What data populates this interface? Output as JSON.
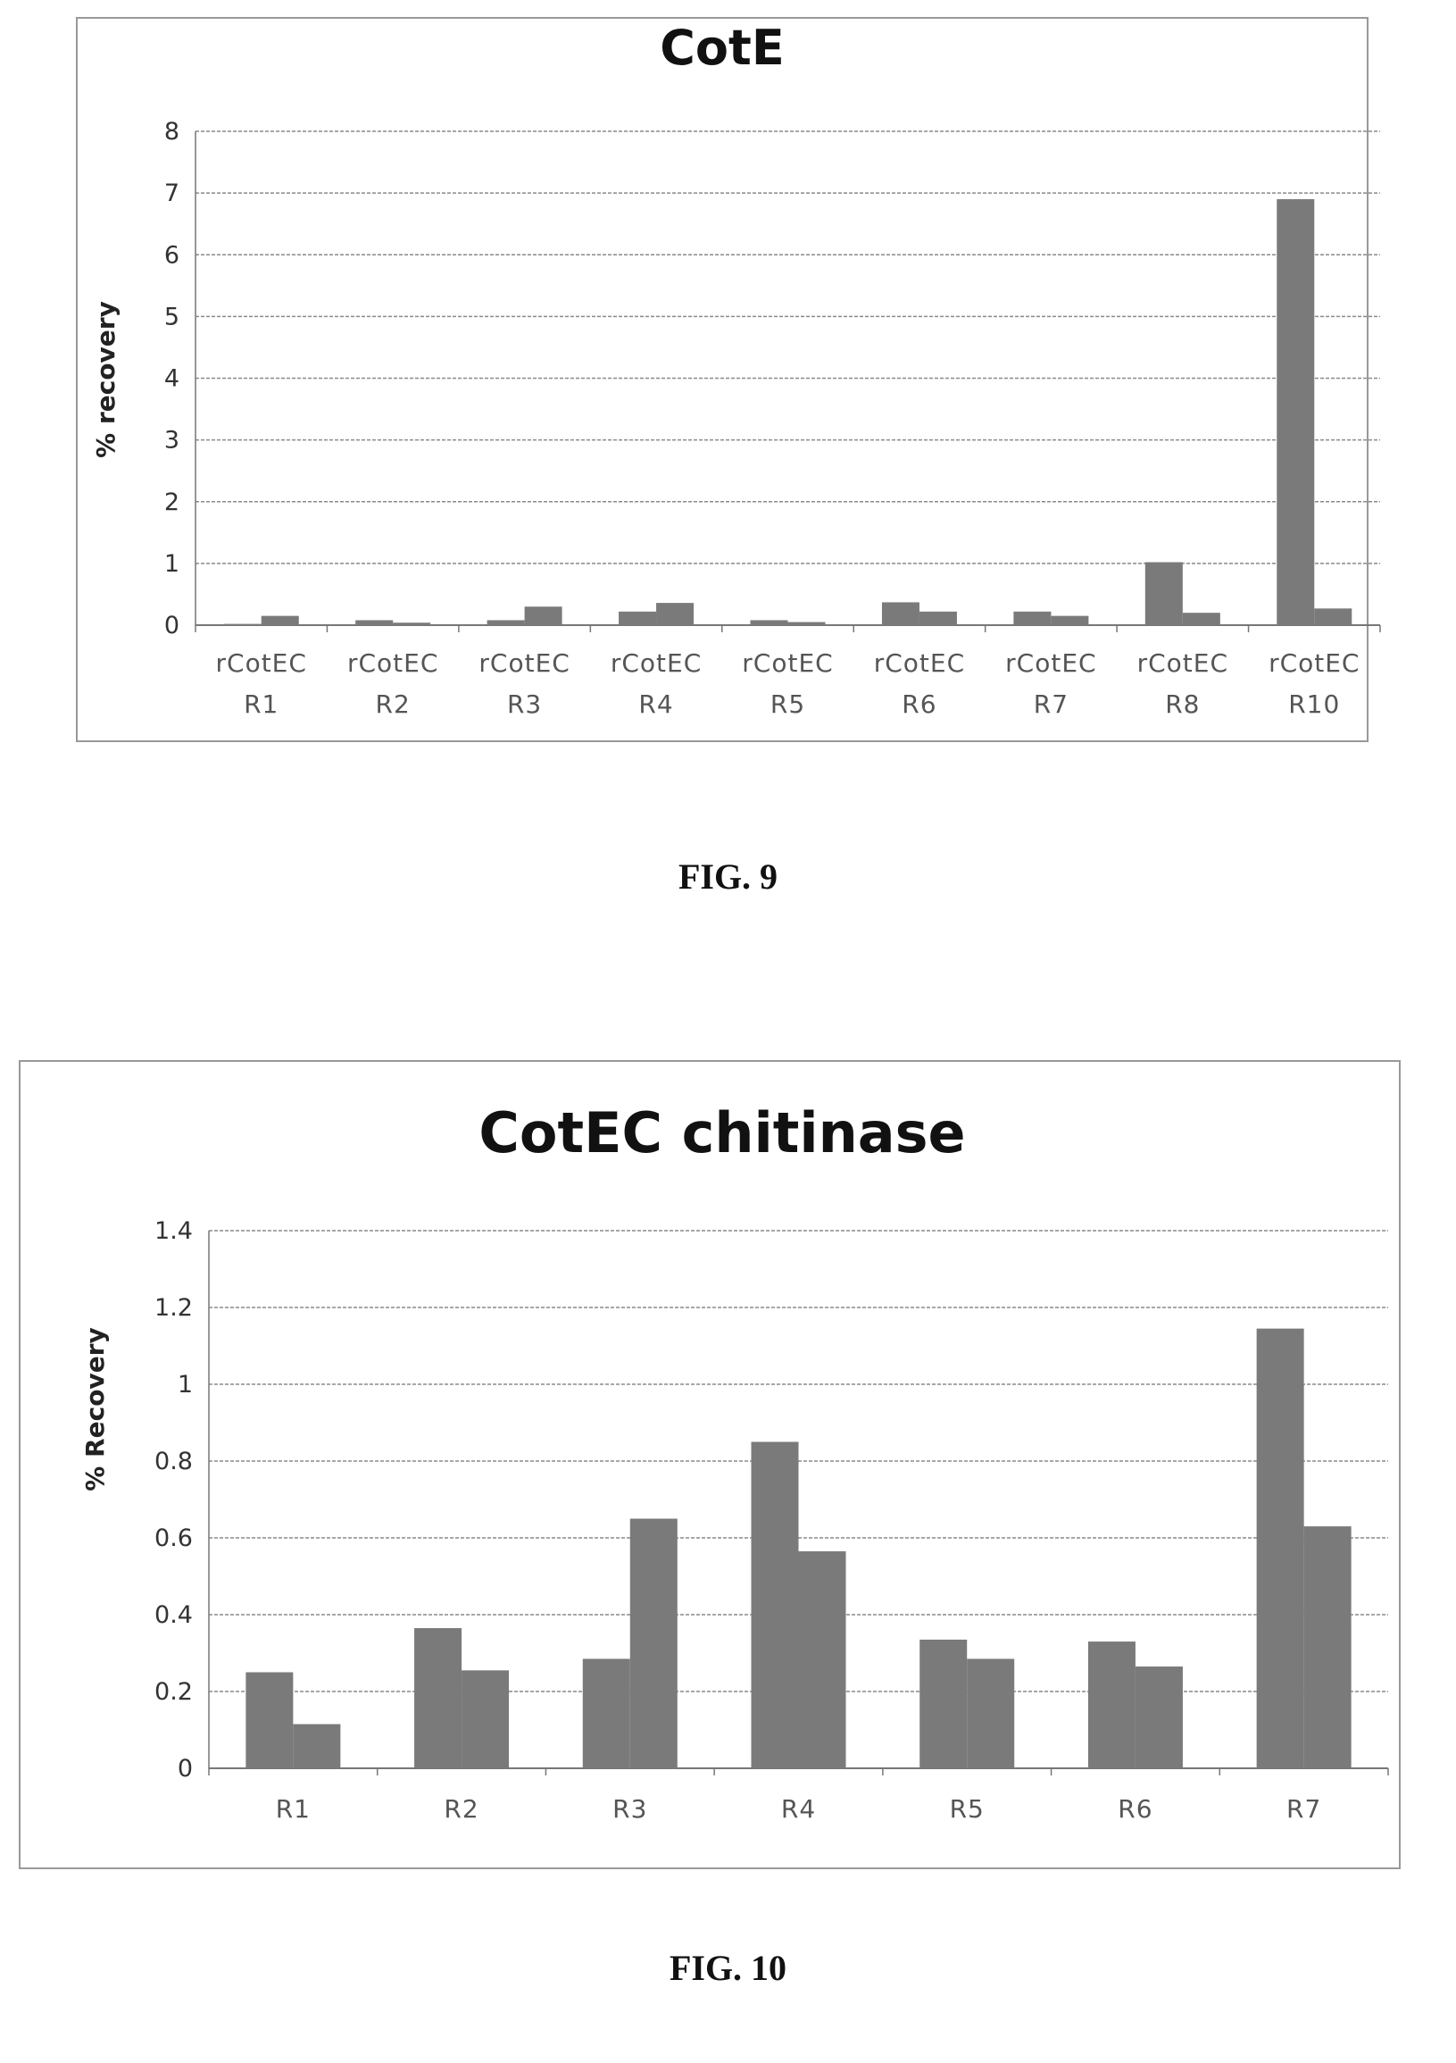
{
  "figures": [
    {
      "caption": "FIG. 9"
    },
    {
      "caption": "FIG. 10"
    }
  ],
  "colors": {
    "bar": "#7a7a7a",
    "grid": "#8a8a8a",
    "border": "#999999"
  },
  "chart_data": [
    {
      "type": "bar",
      "title": "CotE",
      "ylabel": "% recovery",
      "xlabel": "",
      "ylim": [
        0,
        8
      ],
      "yticks": [
        "0",
        "1",
        "2",
        "3",
        "4",
        "5",
        "6",
        "7",
        "8"
      ],
      "categories": [
        "rCotEC R1",
        "rCotEC R2",
        "rCotEC R3",
        "rCotEC R4",
        "rCotEC R5",
        "rCotEC R6",
        "rCotEC R7",
        "rCotEC R8",
        "rCotEC R10"
      ],
      "category_lines": [
        [
          "rCotEC",
          "R1"
        ],
        [
          "rCotEC",
          "R2"
        ],
        [
          "rCotEC",
          "R3"
        ],
        [
          "rCotEC",
          "R4"
        ],
        [
          "rCotEC",
          "R5"
        ],
        [
          "rCotEC",
          "R6"
        ],
        [
          "rCotEC",
          "R7"
        ],
        [
          "rCotEC",
          "R8"
        ],
        [
          "rCotEC",
          "R10"
        ]
      ],
      "series": [
        {
          "values": [
            0.02,
            0.08,
            0.08,
            0.22,
            0.08,
            0.37,
            0.22,
            1.02,
            6.9
          ]
        },
        {
          "values": [
            0.15,
            0.04,
            0.3,
            0.36,
            0.05,
            0.22,
            0.15,
            0.2,
            0.27
          ]
        }
      ],
      "grid": true,
      "legend": "none"
    },
    {
      "type": "bar",
      "title": "CotEC chitinase",
      "ylabel": "% Recovery",
      "xlabel": "",
      "ylim": [
        0,
        1.4
      ],
      "yticks": [
        "0",
        "0.2",
        "0.4",
        "0.6",
        "0.8",
        "1",
        "1.2",
        "1.4"
      ],
      "categories": [
        "R1",
        "R2",
        "R3",
        "R4",
        "R5",
        "R6",
        "R7"
      ],
      "series": [
        {
          "values": [
            0.25,
            0.365,
            0.285,
            0.85,
            0.335,
            0.33,
            1.145
          ]
        },
        {
          "values": [
            0.115,
            0.255,
            0.65,
            0.565,
            0.285,
            0.265,
            0.63
          ]
        }
      ],
      "grid": true,
      "legend": "none"
    }
  ]
}
